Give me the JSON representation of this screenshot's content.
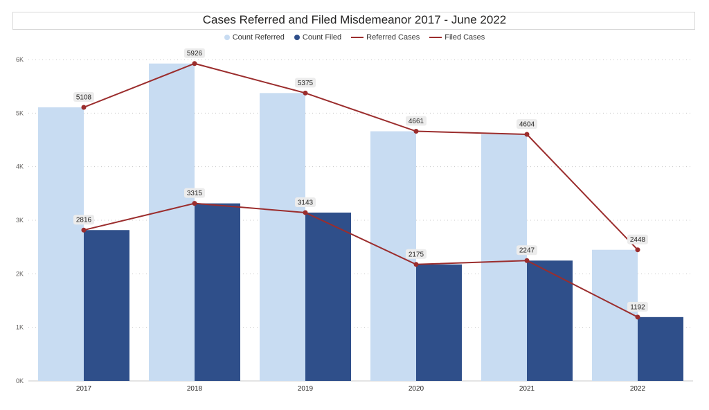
{
  "chart_data": {
    "type": "bar",
    "title": "Cases Referred and Filed Misdemeanor 2017 - June 2022",
    "categories": [
      "2017",
      "2018",
      "2019",
      "2020",
      "2021",
      "2022"
    ],
    "series": [
      {
        "name": "Count Referred",
        "kind": "bar",
        "color": "#c8dcf2",
        "values": [
          5108,
          5926,
          5375,
          4661,
          4604,
          2448
        ]
      },
      {
        "name": "Count Filed",
        "kind": "bar",
        "color": "#2f4f8a",
        "values": [
          2816,
          3315,
          3143,
          2175,
          2247,
          1192
        ]
      },
      {
        "name": "Referred Cases",
        "kind": "line",
        "color": "#9b2d2d",
        "values": [
          5108,
          5926,
          5375,
          4661,
          4604,
          2448
        ]
      },
      {
        "name": "Filed Cases",
        "kind": "line",
        "color": "#9b2d2d",
        "values": [
          2816,
          3315,
          3143,
          2175,
          2247,
          1192
        ]
      }
    ],
    "ylim": [
      0,
      6000
    ],
    "yticks": [
      0,
      1000,
      2000,
      3000,
      4000,
      5000,
      6000
    ],
    "ytick_labels": [
      "0K",
      "1K",
      "2K",
      "3K",
      "4K",
      "5K",
      "6K"
    ],
    "grid": true,
    "legend_position": "top-center"
  }
}
